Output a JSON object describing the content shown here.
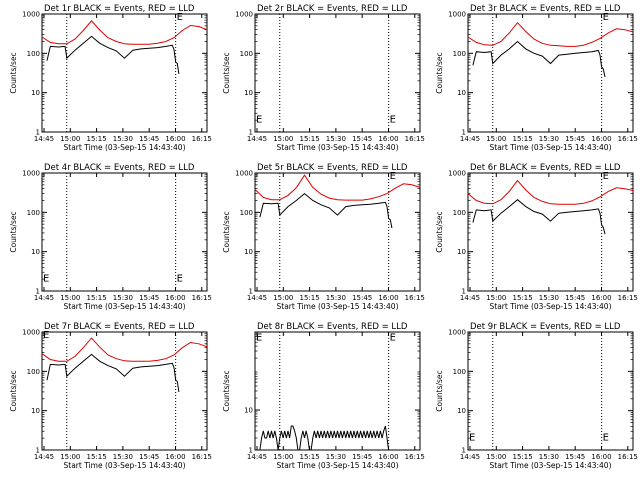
{
  "figure": {
    "x_tick_labels": [
      "14:45",
      "15:00",
      "15:15",
      "15:30",
      "15:45",
      "16:00",
      "16:15"
    ],
    "xlabel": "Start Time (03-Sep-15 14:43:40)",
    "ylabel": "Counts/sec",
    "series_colors": {
      "events": "#000000",
      "lld": "#e00000"
    },
    "flag_letter": "E"
  },
  "chart_data": [
    {
      "type": "line",
      "title": "Det 1r BLACK = Events, RED = LLD",
      "ylog": true,
      "ytick_labels": [
        "1",
        "10",
        "100",
        "1000"
      ],
      "yrange": [
        1,
        1000
      ],
      "xrange_min": [
        0,
        100
      ],
      "flag_lines_min": [
        15,
        81
      ],
      "flags": [
        {
          "x": 81,
          "y": 900
        }
      ],
      "series": [
        {
          "color": "#e00000",
          "x": [
            0,
            5,
            10,
            15,
            20,
            25,
            30,
            35,
            40,
            45,
            50,
            55,
            60,
            65,
            70,
            75,
            80,
            85,
            90,
            95,
            100
          ],
          "y": [
            260,
            190,
            175,
            175,
            230,
            380,
            670,
            390,
            250,
            200,
            175,
            170,
            170,
            170,
            180,
            200,
            250,
            380,
            510,
            480,
            400
          ]
        },
        {
          "color": "#000000",
          "x": [
            3,
            5,
            10,
            14,
            15,
            20,
            25,
            30,
            35,
            40,
            45,
            50,
            55,
            60,
            65,
            70,
            75,
            79,
            80,
            81,
            82,
            83
          ],
          "y": [
            65,
            150,
            145,
            150,
            75,
            120,
            180,
            270,
            180,
            140,
            115,
            75,
            120,
            130,
            135,
            140,
            150,
            160,
            125,
            60,
            55,
            30
          ]
        }
      ]
    },
    {
      "type": "line",
      "title": "Det 2r BLACK = Events, RED = LLD",
      "ylog": true,
      "ytick_labels": [
        "1",
        "10",
        "100",
        "1000"
      ],
      "yrange": [
        1,
        1000
      ],
      "xrange_min": [
        0,
        100
      ],
      "flag_lines_min": [
        15,
        81
      ],
      "flags": [
        {
          "x": 0,
          "y": 2.2
        },
        {
          "x": 81,
          "y": 2.2
        }
      ],
      "series": []
    },
    {
      "type": "line",
      "title": "Det 3r BLACK = Events, RED = LLD",
      "ylog": true,
      "ytick_labels": [
        "1",
        "10",
        "100",
        "1000"
      ],
      "yrange": [
        1,
        1000
      ],
      "xrange_min": [
        0,
        100
      ],
      "flag_lines_min": [
        15,
        81
      ],
      "flags": [
        {
          "x": 81,
          "y": 900
        }
      ],
      "series": [
        {
          "color": "#e00000",
          "x": [
            0,
            5,
            10,
            15,
            20,
            25,
            30,
            35,
            40,
            45,
            50,
            55,
            60,
            65,
            70,
            75,
            80,
            85,
            90,
            95,
            100
          ],
          "y": [
            260,
            190,
            165,
            160,
            200,
            330,
            600,
            360,
            230,
            180,
            160,
            155,
            150,
            150,
            160,
            190,
            240,
            330,
            420,
            400,
            350
          ]
        },
        {
          "color": "#000000",
          "x": [
            3,
            5,
            10,
            14,
            15,
            20,
            25,
            30,
            35,
            40,
            45,
            50,
            55,
            60,
            65,
            70,
            75,
            79,
            80,
            81,
            82,
            83
          ],
          "y": [
            50,
            110,
            105,
            110,
            55,
            90,
            130,
            200,
            130,
            100,
            85,
            55,
            90,
            95,
            100,
            105,
            110,
            118,
            90,
            45,
            40,
            25
          ]
        }
      ]
    },
    {
      "type": "line",
      "title": "Det 4r BLACK = Events, RED = LLD",
      "ylog": true,
      "ytick_labels": [
        "1",
        "10",
        "100",
        "1000"
      ],
      "yrange": [
        1,
        1000
      ],
      "xrange_min": [
        0,
        100
      ],
      "flag_lines_min": [
        15,
        81
      ],
      "flags": [
        {
          "x": 0,
          "y": 2.2
        },
        {
          "x": 81,
          "y": 2.2
        }
      ],
      "series": []
    },
    {
      "type": "line",
      "title": "Det 5r BLACK = Events, RED = LLD",
      "ylog": true,
      "ytick_labels": [
        "1",
        "10",
        "100",
        "1000"
      ],
      "yrange": [
        1,
        1000
      ],
      "xrange_min": [
        0,
        100
      ],
      "flag_lines_min": [
        15,
        81
      ],
      "flags": [
        {
          "x": 81,
          "y": 900
        }
      ],
      "series": [
        {
          "color": "#e00000",
          "x": [
            0,
            5,
            10,
            15,
            20,
            25,
            30,
            35,
            40,
            45,
            50,
            55,
            60,
            65,
            70,
            75,
            80,
            85,
            90,
            95,
            100
          ],
          "y": [
            380,
            240,
            210,
            210,
            270,
            420,
            880,
            430,
            290,
            230,
            210,
            205,
            205,
            205,
            220,
            250,
            300,
            410,
            530,
            500,
            430
          ]
        },
        {
          "color": "#000000",
          "x": [
            3,
            5,
            10,
            14,
            15,
            20,
            25,
            30,
            35,
            40,
            45,
            50,
            55,
            60,
            65,
            70,
            75,
            79,
            80,
            81,
            82,
            83
          ],
          "y": [
            75,
            170,
            165,
            170,
            85,
            140,
            200,
            300,
            200,
            155,
            130,
            85,
            140,
            150,
            155,
            160,
            170,
            180,
            140,
            70,
            65,
            40
          ]
        }
      ]
    },
    {
      "type": "line",
      "title": "Det 6r BLACK = Events, RED = LLD",
      "ylog": true,
      "ytick_labels": [
        "1",
        "10",
        "100",
        "1000"
      ],
      "yrange": [
        1,
        1000
      ],
      "xrange_min": [
        0,
        100
      ],
      "flag_lines_min": [
        15,
        81
      ],
      "flags": [
        {
          "x": 81,
          "y": 900
        }
      ],
      "series": [
        {
          "color": "#e00000",
          "x": [
            0,
            5,
            10,
            15,
            20,
            25,
            30,
            35,
            40,
            45,
            50,
            55,
            60,
            65,
            70,
            75,
            80,
            85,
            90,
            95,
            100
          ],
          "y": [
            300,
            200,
            170,
            165,
            210,
            340,
            640,
            370,
            240,
            190,
            165,
            160,
            160,
            160,
            170,
            195,
            245,
            340,
            420,
            400,
            360
          ]
        },
        {
          "color": "#000000",
          "x": [
            3,
            5,
            10,
            14,
            15,
            20,
            25,
            30,
            35,
            40,
            45,
            50,
            55,
            60,
            65,
            70,
            75,
            79,
            80,
            81,
            82,
            83
          ],
          "y": [
            55,
            115,
            110,
            115,
            60,
            95,
            140,
            210,
            140,
            105,
            90,
            60,
            95,
            100,
            105,
            110,
            115,
            122,
            95,
            48,
            42,
            28
          ]
        }
      ]
    },
    {
      "type": "line",
      "title": "Det 7r BLACK = Events, RED = LLD",
      "ylog": true,
      "ytick_labels": [
        "1",
        "10",
        "100",
        "1000"
      ],
      "yrange": [
        1,
        1000
      ],
      "xrange_min": [
        0,
        100
      ],
      "flag_lines_min": [
        15,
        81
      ],
      "flags": [
        {
          "x": 0,
          "y": 900
        }
      ],
      "series": [
        {
          "color": "#e00000",
          "x": [
            0,
            5,
            10,
            15,
            20,
            25,
            30,
            35,
            40,
            45,
            50,
            55,
            60,
            65,
            70,
            75,
            80,
            85,
            90,
            95,
            100
          ],
          "y": [
            280,
            200,
            180,
            180,
            240,
            400,
            700,
            410,
            260,
            210,
            185,
            180,
            180,
            180,
            190,
            210,
            260,
            400,
            540,
            500,
            420
          ]
        },
        {
          "color": "#000000",
          "x": [
            3,
            5,
            10,
            14,
            15,
            20,
            25,
            30,
            35,
            40,
            45,
            50,
            55,
            60,
            65,
            70,
            75,
            79,
            80,
            81,
            82,
            83
          ],
          "y": [
            60,
            150,
            145,
            150,
            75,
            120,
            180,
            270,
            180,
            140,
            115,
            75,
            120,
            130,
            135,
            140,
            150,
            160,
            125,
            60,
            55,
            30
          ]
        }
      ]
    },
    {
      "type": "line",
      "title": "Det 8r BLACK = Events, RED = LLD",
      "ylog": true,
      "ytick_labels": [
        "1",
        "10"
      ],
      "yrange": [
        1,
        900
      ],
      "xrange_min": [
        0,
        100
      ],
      "flag_lines_min": [
        15,
        81
      ],
      "flags": [
        {
          "x": 0,
          "y": 700
        },
        {
          "x": 81,
          "y": 700
        }
      ],
      "series": [
        {
          "color": "#000000",
          "x": [
            0,
            1,
            2,
            3,
            4,
            5,
            6,
            7,
            8,
            9,
            10,
            11,
            12,
            13,
            14,
            15,
            16,
            17,
            18,
            19,
            20,
            21,
            22,
            23,
            24,
            25,
            26,
            27,
            28,
            29,
            30,
            31,
            32,
            33,
            34,
            35,
            36,
            37,
            38,
            39,
            40,
            41,
            42,
            43,
            44,
            45,
            46,
            47,
            48,
            49,
            50,
            51,
            52,
            53,
            54,
            55,
            56,
            57,
            58,
            59,
            60,
            61,
            62,
            63,
            64,
            65,
            66,
            67,
            68,
            69,
            70,
            71,
            72,
            73,
            74,
            75,
            76,
            77,
            78,
            79,
            80,
            81,
            82,
            83
          ],
          "y": [
            1,
            1,
            1,
            1,
            2,
            3,
            2,
            2,
            3,
            2,
            3,
            2,
            3,
            2,
            1,
            2,
            3,
            2,
            3,
            2,
            3,
            2,
            4,
            4,
            3,
            2,
            1,
            1,
            2,
            3,
            2,
            3,
            2,
            1,
            1,
            2,
            3,
            2,
            3,
            2,
            3,
            2,
            3,
            2,
            3,
            2,
            3,
            2,
            3,
            2,
            3,
            2,
            3,
            2,
            3,
            2,
            3,
            2,
            3,
            2,
            3,
            2,
            3,
            2,
            3,
            2,
            3,
            2,
            3,
            2,
            3,
            2,
            3,
            2,
            3,
            2,
            3,
            2,
            3,
            4,
            2,
            1,
            1,
            1
          ]
        }
      ]
    },
    {
      "type": "line",
      "title": "Det 9r BLACK = Events, RED = LLD",
      "ylog": true,
      "ytick_labels": [
        "1",
        "10",
        "100",
        "1000"
      ],
      "yrange": [
        1,
        1000
      ],
      "xrange_min": [
        0,
        100
      ],
      "flag_lines_min": [
        15,
        81
      ],
      "flags": [
        {
          "x": 0,
          "y": 2.2
        },
        {
          "x": 81,
          "y": 2.2
        }
      ],
      "series": []
    }
  ]
}
